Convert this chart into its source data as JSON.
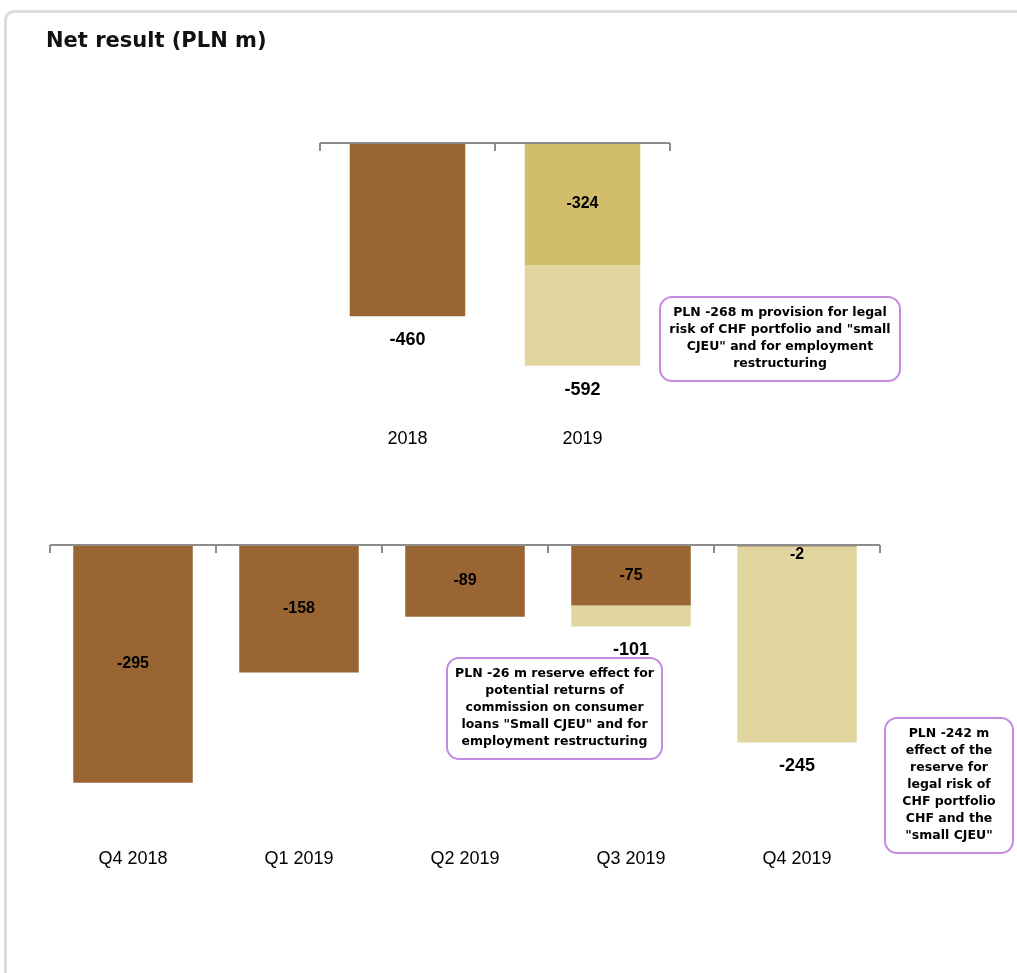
{
  "chart_data": [
    {
      "type": "bar",
      "title": "Net result (PLN m)",
      "stacked": true,
      "categories": [
        "2018",
        "2019"
      ],
      "series": [
        {
          "colors": [
            "#996633",
            "#d2bd6a"
          ],
          "values": [
            -460,
            -324
          ],
          "value_labels": [
            null,
            "-324"
          ]
        },
        {
          "color": "#e2d6a0",
          "values": [
            null,
            -268
          ]
        }
      ],
      "totals": [
        "-460",
        "-592"
      ],
      "annotations": [
        "PLN -268 m provision for legal risk of CHF portfolio and \"small CJEU\" and for employment restructuring"
      ]
    },
    {
      "type": "bar",
      "stacked": true,
      "categories": [
        "Q4 2018",
        "Q1 2019",
        "Q2 2019",
        "Q3 2019",
        "Q4 2019"
      ],
      "series": [
        {
          "color": "#996633",
          "values": [
            -295,
            -158,
            -89,
            -75,
            -2
          ],
          "value_labels": [
            "-295",
            "-158",
            "-89",
            "-75",
            "-2"
          ]
        },
        {
          "color": "#e2d6a0",
          "values": [
            null,
            null,
            null,
            -26,
            -243
          ]
        }
      ],
      "totals": [
        null,
        null,
        null,
        "-101",
        "-245"
      ],
      "annotations": [
        "PLN -26 m reserve effect for potential returns of commission on consumer loans \"Small CJEU\" and for employment restructuring",
        "PLN -242 m effect of the reserve for legal risk of CHF portfolio CHF and the \"small CJEU\""
      ]
    }
  ]
}
